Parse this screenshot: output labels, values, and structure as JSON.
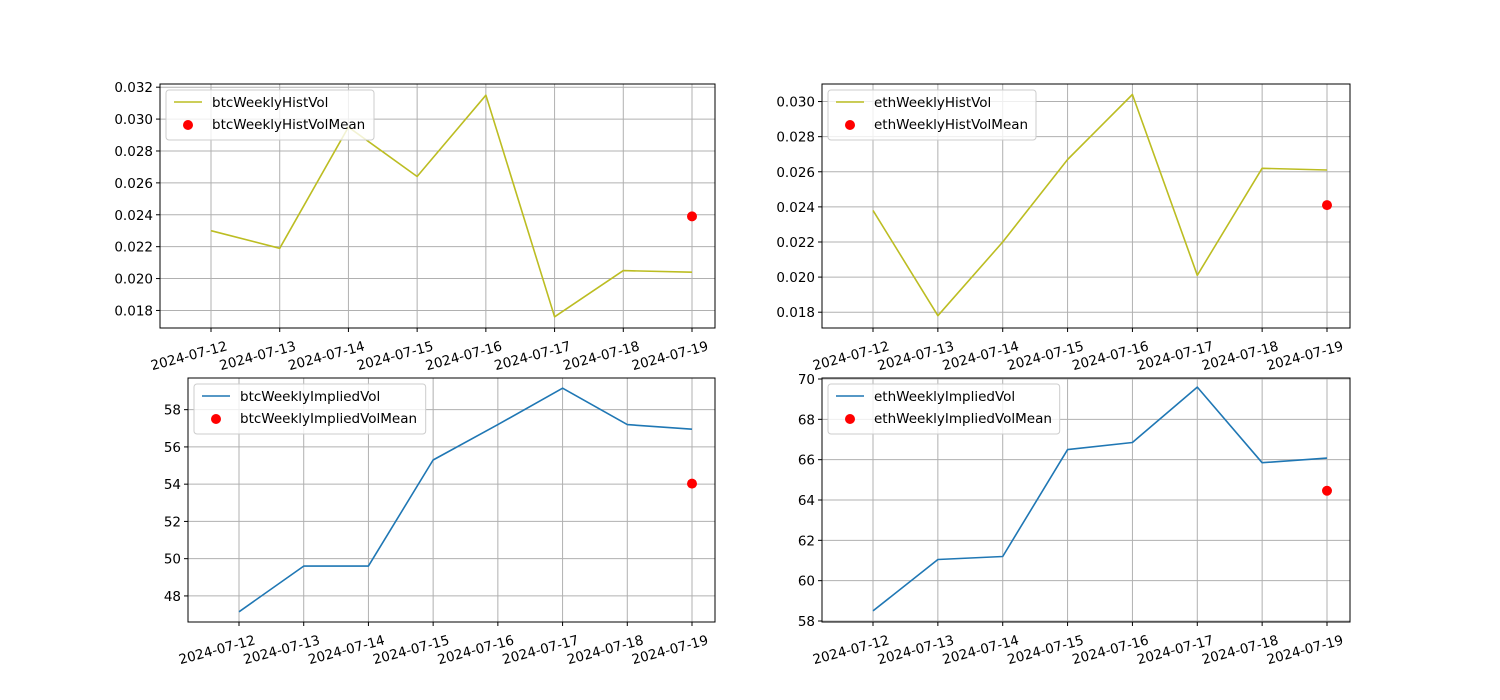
{
  "chart_data": [
    {
      "type": "line",
      "x": [
        "2024-07-12",
        "2024-07-13",
        "2024-07-14",
        "2024-07-15",
        "2024-07-16",
        "2024-07-17",
        "2024-07-18",
        "2024-07-19"
      ],
      "series": [
        {
          "name": "btcWeeklyHistVol",
          "kind": "line",
          "color": "#bcbd22",
          "values": [
            0.023,
            0.0219,
            0.0295,
            0.0264,
            0.0315,
            0.0176,
            0.0205,
            0.0204
          ]
        },
        {
          "name": "btcWeeklyHistVolMean",
          "kind": "scatter",
          "color": "#ff0000",
          "points": [
            {
              "x": "2024-07-19",
              "y": 0.0239
            }
          ]
        }
      ],
      "ylim": [
        0.0169,
        0.0322
      ],
      "yticks": [
        0.018,
        0.02,
        0.022,
        0.024,
        0.026,
        0.028,
        0.03,
        0.032
      ],
      "ytick_labels": [
        "0.018",
        "0.020",
        "0.022",
        "0.024",
        "0.026",
        "0.028",
        "0.030",
        "0.032"
      ],
      "grid": true,
      "legend": "top-left"
    },
    {
      "type": "line",
      "x": [
        "2024-07-12",
        "2024-07-13",
        "2024-07-14",
        "2024-07-15",
        "2024-07-16",
        "2024-07-17",
        "2024-07-18",
        "2024-07-19"
      ],
      "series": [
        {
          "name": "ethWeeklyHistVol",
          "kind": "line",
          "color": "#bcbd22",
          "values": [
            0.0238,
            0.0178,
            0.022,
            0.0267,
            0.0304,
            0.0201,
            0.0262,
            0.0261
          ]
        },
        {
          "name": "ethWeeklyHistVolMean",
          "kind": "scatter",
          "color": "#ff0000",
          "points": [
            {
              "x": "2024-07-19",
              "y": 0.0241
            }
          ]
        }
      ],
      "ylim": [
        0.0171,
        0.031
      ],
      "yticks": [
        0.018,
        0.02,
        0.022,
        0.024,
        0.026,
        0.028,
        0.03
      ],
      "ytick_labels": [
        "0.018",
        "0.020",
        "0.022",
        "0.024",
        "0.026",
        "0.028",
        "0.030"
      ],
      "grid": true,
      "legend": "top-left"
    },
    {
      "type": "line",
      "x": [
        "2024-07-12",
        "2024-07-13",
        "2024-07-14",
        "2024-07-15",
        "2024-07-16",
        "2024-07-17",
        "2024-07-18",
        "2024-07-19"
      ],
      "series": [
        {
          "name": "btcWeeklyImpliedVol",
          "kind": "line",
          "color": "#1f77b4",
          "values": [
            47.15,
            49.6,
            49.6,
            55.3,
            57.2,
            59.15,
            57.2,
            56.95
          ]
        },
        {
          "name": "btcWeeklyImpliedVolMean",
          "kind": "scatter",
          "color": "#ff0000",
          "points": [
            {
              "x": "2024-07-19",
              "y": 54.03
            }
          ]
        }
      ],
      "ylim": [
        46.6,
        59.7
      ],
      "yticks": [
        48,
        50,
        52,
        54,
        56,
        58
      ],
      "ytick_labels": [
        "48",
        "50",
        "52",
        "54",
        "56",
        "58"
      ],
      "grid": true,
      "legend": "top-left"
    },
    {
      "type": "line",
      "x": [
        "2024-07-12",
        "2024-07-13",
        "2024-07-14",
        "2024-07-15",
        "2024-07-16",
        "2024-07-17",
        "2024-07-18",
        "2024-07-19"
      ],
      "series": [
        {
          "name": "ethWeeklyImpliedVol",
          "kind": "line",
          "color": "#1f77b4",
          "values": [
            58.5,
            61.05,
            61.2,
            66.5,
            66.85,
            69.6,
            65.85,
            66.08
          ]
        },
        {
          "name": "ethWeeklyImpliedVolMean",
          "kind": "scatter",
          "color": "#ff0000",
          "points": [
            {
              "x": "2024-07-19",
              "y": 64.46
            }
          ]
        }
      ],
      "ylim": [
        57.95,
        70.05
      ],
      "yticks": [
        58,
        60,
        62,
        64,
        66,
        68,
        70
      ],
      "ytick_labels": [
        "58",
        "60",
        "62",
        "64",
        "66",
        "68",
        "70"
      ],
      "grid": true,
      "legend": "top-left"
    }
  ]
}
